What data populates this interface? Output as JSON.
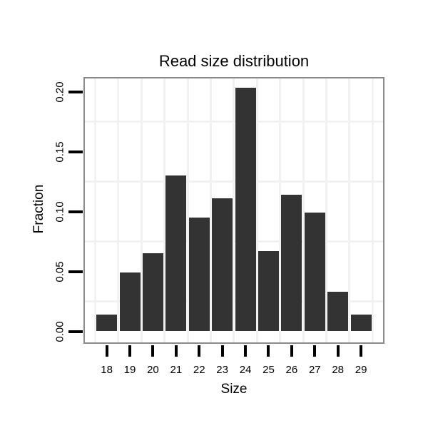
{
  "chart": {
    "title": "Read size distribution",
    "xlabel": "Size",
    "ylabel": "Fraction"
  },
  "chart_data": {
    "type": "bar",
    "title": "Read size distribution",
    "xlabel": "Size",
    "ylabel": "Fraction",
    "categories": [
      "18",
      "19",
      "20",
      "21",
      "22",
      "23",
      "24",
      "25",
      "26",
      "27",
      "28",
      "29"
    ],
    "values": [
      0.014,
      0.049,
      0.065,
      0.13,
      0.095,
      0.111,
      0.203,
      0.067,
      0.114,
      0.099,
      0.033,
      0.014
    ],
    "y_tick_labels": [
      "0.00",
      "0.05",
      "0.10",
      "0.15",
      "0.20"
    ],
    "y_tick_values": [
      0.0,
      0.05,
      0.1,
      0.15,
      0.2
    ],
    "minor_hgrid_values": [
      0.025,
      0.075,
      0.125,
      0.175
    ],
    "ylim": [
      -0.009,
      0.211
    ],
    "grid": "minor-only",
    "legend": "none",
    "bar_color": "#333333",
    "panel_border_color": "#8a8a8a",
    "gridline_color": "#f2f2f2",
    "tick_color": "#000000"
  }
}
